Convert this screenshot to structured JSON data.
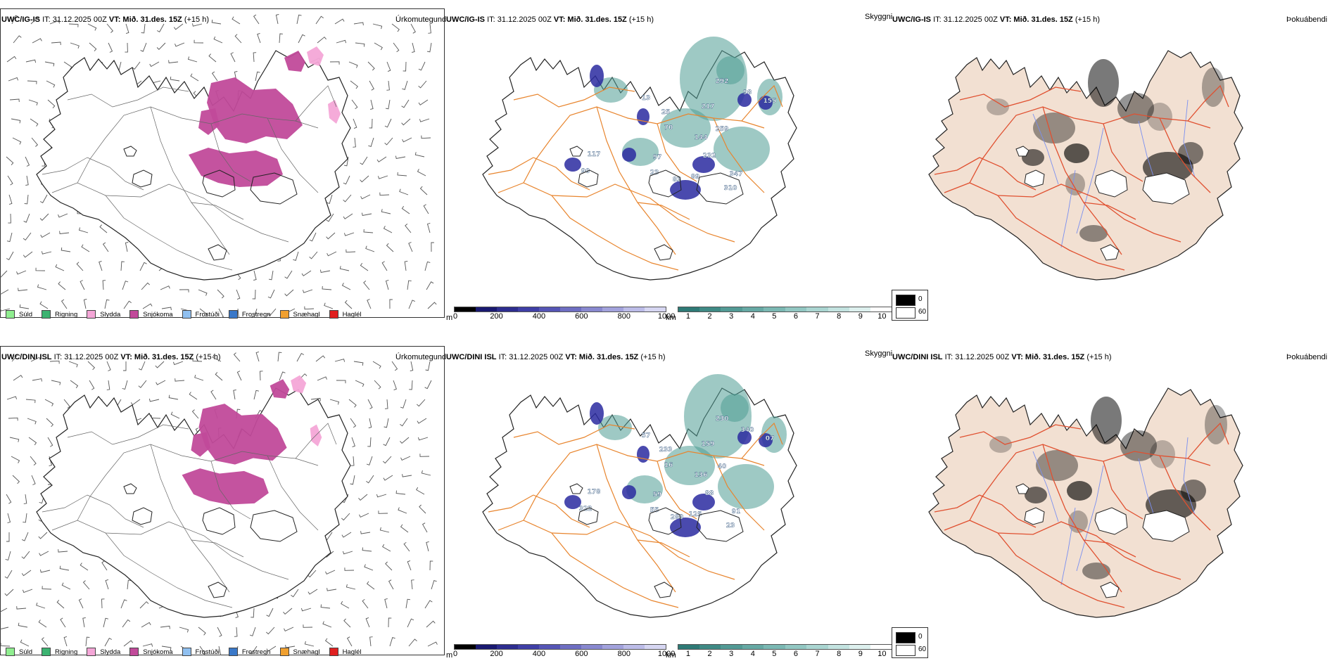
{
  "rows": [
    {
      "id": "top",
      "model_label": "UWC/IG-IS",
      "it_label": "IT: 31.12.2025 00Z",
      "vt_label": "VT: Mið. 31.des. 15Z",
      "lead_label": "(+15 h)",
      "panel_titles": {
        "precip": "Úrkomutegund",
        "cloud": "Skyggni",
        "fog": "Þokuábendi"
      },
      "cloud_values": [
        "292",
        "98",
        "155",
        "217",
        "259",
        "144",
        "232",
        "97",
        "117",
        "90",
        "83",
        "89",
        "347",
        "310",
        "25",
        "70",
        "13",
        "23"
      ]
    },
    {
      "id": "bottom",
      "model_label": "UWC/DINI ISL",
      "it_label": "IT: 31.12.2025 00Z",
      "vt_label": "VT: Mið. 31.des. 15Z",
      "lead_label": "(+15 h)",
      "panel_titles": {
        "precip": "Úrkomutegund",
        "cloud": "Skyggni",
        "fog": "Þokuábendi"
      },
      "cloud_values": [
        "230",
        "340",
        "07",
        "159",
        "40",
        "136",
        "88",
        "59",
        "178",
        "322",
        "289",
        "125",
        "91",
        "23",
        "233",
        "16",
        "57",
        "55"
      ]
    }
  ],
  "precip_legend": [
    {
      "label": "Súld",
      "color": "#90ee90"
    },
    {
      "label": "Rigning",
      "color": "#3cb371"
    },
    {
      "label": "Slydda",
      "color": "#f4a6d7"
    },
    {
      "label": "Snjókoma",
      "color": "#c14a9a"
    },
    {
      "label": "Frostúði",
      "color": "#90c0f0"
    },
    {
      "label": "Frostregn",
      "color": "#3a78c8"
    },
    {
      "label": "Snæhagl",
      "color": "#f0a030"
    },
    {
      "label": "Haglél",
      "color": "#e02020"
    }
  ],
  "height_bar": {
    "unit": "m",
    "ticks": [
      "0",
      "200",
      "400",
      "600",
      "800",
      "1000"
    ],
    "colors": [
      "#000000",
      "#191970",
      "#2d2d8f",
      "#3f3fa6",
      "#5555b5",
      "#6e6ec2",
      "#8888cf",
      "#a2a2dc",
      "#bcbce8",
      "#d6d6f2"
    ]
  },
  "visibility_bar": {
    "unit": "km",
    "ticks": [
      "1",
      "2",
      "3",
      "4",
      "5",
      "6",
      "7",
      "8",
      "9",
      "10"
    ],
    "colors": [
      "#2e7a76",
      "#3f8a85",
      "#529a95",
      "#66a9a4",
      "#7bb8b3",
      "#92c7c2",
      "#aad5d1",
      "#c3e3e0",
      "#ddf0ee",
      "#ffffff"
    ]
  },
  "fog_legend": [
    {
      "label": "0",
      "color": "#000000"
    },
    {
      "label": "60",
      "color": "#ffffff"
    }
  ],
  "colors": {
    "snow": "#c14a9a",
    "sleet": "#f4a6d7",
    "roads": "#e8852e",
    "roads_fog": "#e05030",
    "land_fog": "#f2e0d2",
    "rivers": "#7a8ff0",
    "vis": "#4f9c94",
    "low_cloud": "#2a2aa0"
  }
}
